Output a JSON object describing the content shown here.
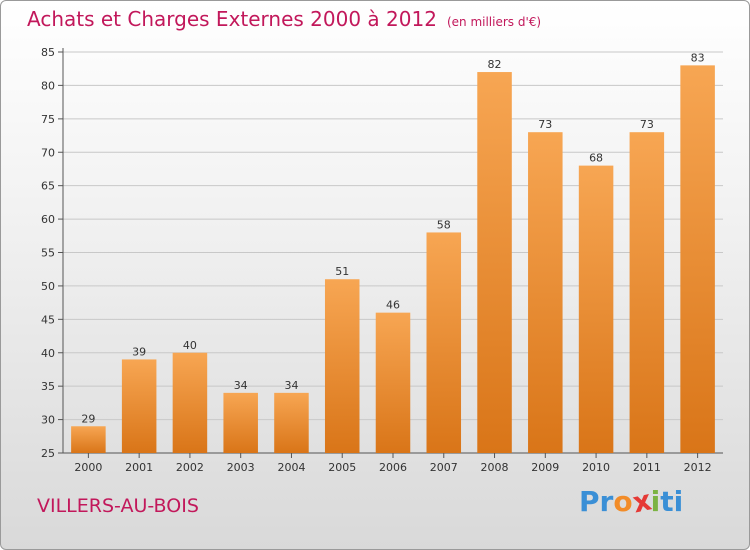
{
  "header": {
    "title": "Achats et Charges Externes 2000 à 2012",
    "subtitle": "(en milliers d'€)"
  },
  "footer": {
    "place": "VILLERS-AU-BOIS",
    "logo_letters": [
      "P",
      "r",
      "o",
      "x",
      "i",
      "t",
      "i"
    ],
    "logo_colors": [
      "#3a8fd6",
      "#3a8fd6",
      "#f28c28",
      "#e53935",
      "#7cb342",
      "#3a8fd6",
      "#3a8fd6"
    ]
  },
  "colors": {
    "bar_light": "#f7a653",
    "bar_dark": "#d97518",
    "title": "#c2185b"
  },
  "chart_data": {
    "type": "bar",
    "title": "Achats et Charges Externes 2000 à 2012",
    "subtitle": "(en milliers d'€)",
    "xlabel": "",
    "ylabel": "",
    "categories": [
      "2000",
      "2001",
      "2002",
      "2003",
      "2004",
      "2005",
      "2006",
      "2007",
      "2008",
      "2009",
      "2010",
      "2011",
      "2012"
    ],
    "values": [
      29,
      39,
      40,
      34,
      34,
      51,
      46,
      58,
      82,
      73,
      68,
      73,
      83
    ],
    "ylim": [
      25,
      85
    ],
    "yticks": [
      25,
      30,
      35,
      40,
      45,
      50,
      55,
      60,
      65,
      70,
      75,
      80,
      85
    ],
    "grid": true
  }
}
